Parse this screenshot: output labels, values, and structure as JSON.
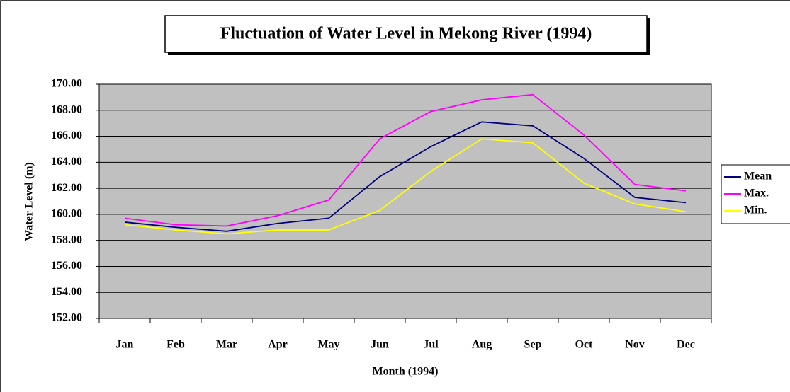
{
  "chart_data": {
    "type": "line",
    "title": "Fluctuation of Water Level in Mekong River (1994)",
    "x_label": "Month (1994)",
    "y_label": "Water Level (m)",
    "categories": [
      "Jan",
      "Feb",
      "Mar",
      "Apr",
      "May",
      "Jun",
      "Jul",
      "Aug",
      "Sep",
      "Oct",
      "Nov",
      "Dec"
    ],
    "series": [
      {
        "name": "Mean",
        "color": "#000080",
        "values": [
          159.4,
          159.0,
          158.7,
          159.3,
          159.7,
          162.9,
          165.2,
          167.1,
          166.8,
          164.3,
          161.3,
          160.9
        ]
      },
      {
        "name": "Max.",
        "color": "#ff00ff",
        "values": [
          159.7,
          159.2,
          159.1,
          159.9,
          161.1,
          165.8,
          167.9,
          168.8,
          169.2,
          166.1,
          162.3,
          161.8
        ]
      },
      {
        "name": "Min.",
        "color": "#ffff00",
        "values": [
          159.2,
          158.8,
          158.5,
          158.8,
          158.8,
          160.3,
          163.3,
          165.8,
          165.5,
          162.4,
          160.8,
          160.2
        ]
      }
    ],
    "ylim": [
      152,
      170
    ],
    "yticks": [
      {
        "value": 152,
        "label": "152.00"
      },
      {
        "value": 154,
        "label": "154.00"
      },
      {
        "value": 156,
        "label": "156.00"
      },
      {
        "value": 158,
        "label": "158.00"
      },
      {
        "value": 160,
        "label": "160.00"
      },
      {
        "value": 162,
        "label": "162.00"
      },
      {
        "value": 164,
        "label": "164.00"
      },
      {
        "value": 166,
        "label": "166.00"
      },
      {
        "value": 168,
        "label": "168.00"
      },
      {
        "value": 170,
        "label": "170.00"
      }
    ],
    "grid": true,
    "legend": "right",
    "plot_background": "#c0c0c0"
  }
}
